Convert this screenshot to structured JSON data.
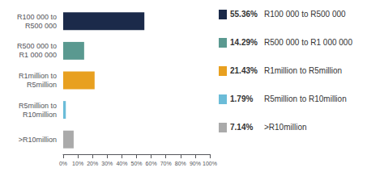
{
  "chart_data": {
    "type": "bar",
    "orientation": "horizontal",
    "categories": [
      "R100 000 to\nR500 000",
      "R500 000 to\nR1 000 000",
      "R1million to\nR5million",
      "R5million to\nR10million",
      ">R10million"
    ],
    "values": [
      55.36,
      14.29,
      21.43,
      1.79,
      7.14
    ],
    "colors": [
      "#1b2a4a",
      "#5a9990",
      "#e8a020",
      "#6bbcd8",
      "#aaaaaa"
    ],
    "xlim": [
      0,
      100
    ],
    "xticks": [
      {
        "value": 0,
        "label": "0%"
      },
      {
        "value": 10,
        "label": "10%"
      },
      {
        "value": 20,
        "label": "20%"
      },
      {
        "value": 30,
        "label": "30%"
      },
      {
        "value": 40,
        "label": "40%"
      },
      {
        "value": 50,
        "label": "50%"
      },
      {
        "value": 60,
        "label": "60%"
      },
      {
        "value": 70,
        "label": "70%"
      },
      {
        "value": 80,
        "label": "80%"
      },
      {
        "value": 90,
        "label": "90%"
      },
      {
        "value": 100,
        "label": "100%"
      }
    ],
    "grid": false,
    "legend": "right",
    "legend_entries": [
      {
        "label": "55.36%",
        "name": "R100 000 to R500 000"
      },
      {
        "label": "14.29%",
        "name": "R500 000 to R1 000 000"
      },
      {
        "label": "21.43%",
        "name": "R1million to R5million"
      },
      {
        "label": "1.79%",
        "name": "R5million to R10million"
      },
      {
        "label": "7.14%",
        "name": ">R10million"
      }
    ]
  }
}
